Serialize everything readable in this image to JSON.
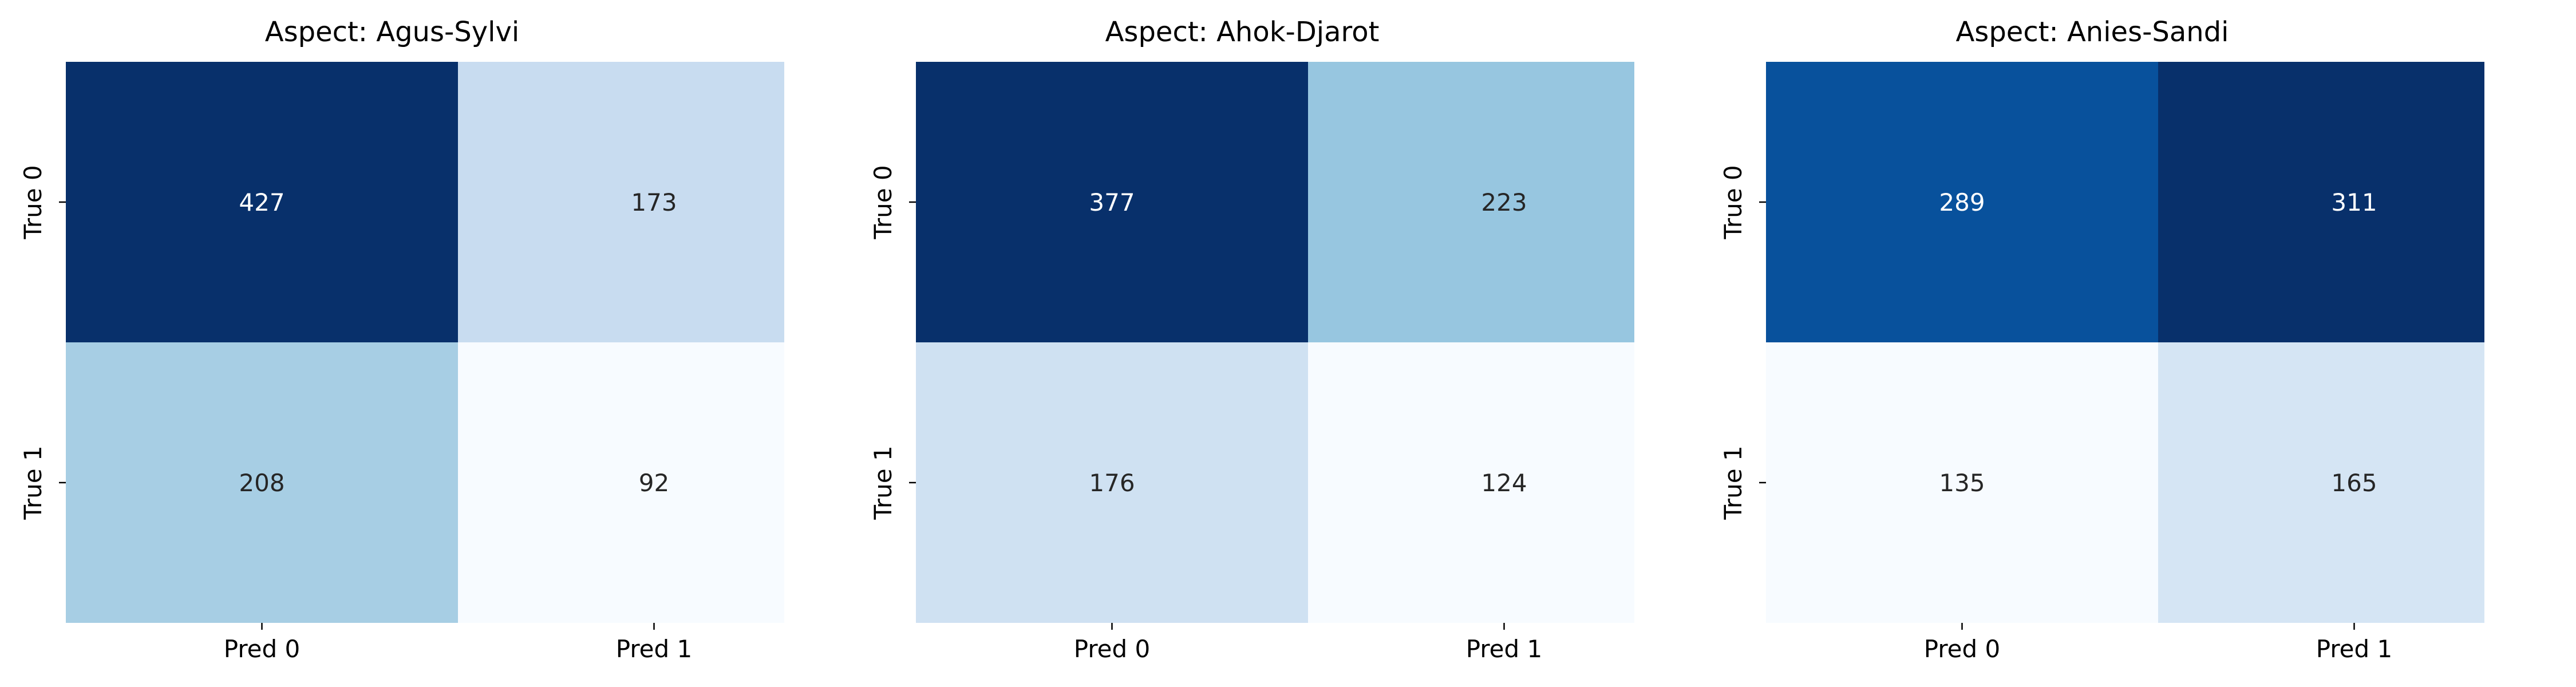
{
  "chart_data": [
    {
      "type": "heatmap",
      "title": "Aspect: Agus-Sylvi",
      "x_categories": [
        "Pred 0",
        "Pred 1"
      ],
      "y_categories": [
        "True 0",
        "True 1"
      ],
      "values": [
        [
          427,
          173
        ],
        [
          208,
          92
        ]
      ],
      "colormap": "Blues",
      "colorbar": false
    },
    {
      "type": "heatmap",
      "title": "Aspect: Ahok-Djarot",
      "x_categories": [
        "Pred 0",
        "Pred 1"
      ],
      "y_categories": [
        "True 0",
        "True 1"
      ],
      "values": [
        [
          377,
          223
        ],
        [
          176,
          124
        ]
      ],
      "colormap": "Blues",
      "colorbar": false
    },
    {
      "type": "heatmap",
      "title": "Aspect: Anies-Sandi",
      "x_categories": [
        "Pred 0",
        "Pred 1"
      ],
      "y_categories": [
        "True 0",
        "True 1"
      ],
      "values": [
        [
          289,
          311
        ],
        [
          135,
          165
        ]
      ],
      "colormap": "Blues",
      "colorbar": false
    }
  ]
}
